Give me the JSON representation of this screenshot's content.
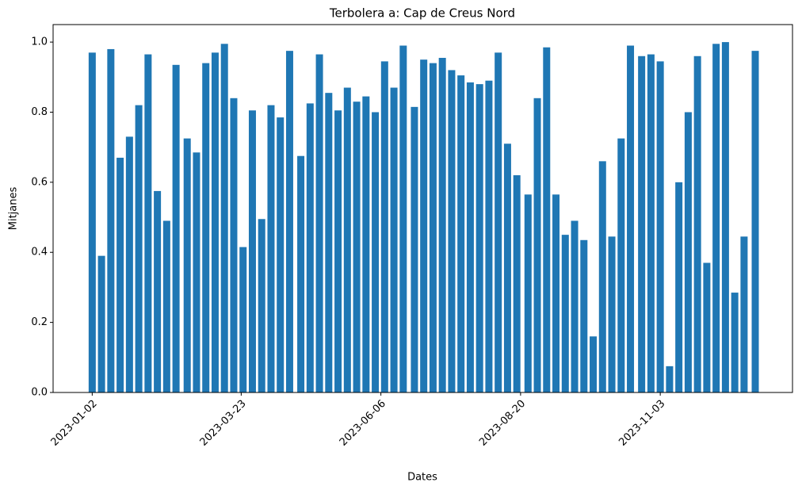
{
  "chart_data": {
    "type": "bar",
    "title": "Terbolera a: Cap de Creus Nord",
    "xlabel": "Dates",
    "ylabel": "Mitjanes",
    "color": "#1f77b4",
    "x": [
      "2023-01-02",
      "2023-01-07",
      "2023-01-12",
      "2023-01-17",
      "2023-01-22",
      "2023-01-27",
      "2023-02-01",
      "2023-02-06",
      "2023-02-11",
      "2023-02-16",
      "2023-02-22",
      "2023-02-27",
      "2023-03-04",
      "2023-03-09",
      "2023-03-14",
      "2023-03-19",
      "2023-03-24",
      "2023-03-29",
      "2023-04-03",
      "2023-04-08",
      "2023-04-13",
      "2023-04-18",
      "2023-04-24",
      "2023-04-29",
      "2023-05-04",
      "2023-05-09",
      "2023-05-14",
      "2023-05-19",
      "2023-05-24",
      "2023-05-29",
      "2023-06-03",
      "2023-06-08",
      "2023-06-13",
      "2023-06-18",
      "2023-06-24",
      "2023-06-29",
      "2023-07-04",
      "2023-07-09",
      "2023-07-14",
      "2023-07-19",
      "2023-07-24",
      "2023-07-29",
      "2023-08-03",
      "2023-08-08",
      "2023-08-13",
      "2023-08-18",
      "2023-08-24",
      "2023-08-29",
      "2023-09-03",
      "2023-09-08",
      "2023-09-13",
      "2023-09-18",
      "2023-09-23",
      "2023-09-28",
      "2023-10-03",
      "2023-10-08",
      "2023-10-13",
      "2023-10-18",
      "2023-10-24",
      "2023-10-29",
      "2023-11-03",
      "2023-11-08",
      "2023-11-13",
      "2023-11-18",
      "2023-11-23",
      "2023-11-28",
      "2023-12-03",
      "2023-12-08",
      "2023-12-13",
      "2023-12-18",
      "2023-12-24"
    ],
    "values": [
      0.97,
      0.39,
      0.98,
      0.67,
      0.73,
      0.82,
      0.965,
      0.575,
      0.49,
      0.935,
      0.725,
      0.685,
      0.94,
      0.97,
      0.995,
      0.84,
      0.415,
      0.805,
      0.495,
      0.82,
      0.785,
      0.975,
      0.675,
      0.825,
      0.965,
      0.855,
      0.805,
      0.87,
      0.83,
      0.845,
      0.8,
      0.945,
      0.87,
      0.99,
      0.815,
      0.95,
      0.94,
      0.955,
      0.92,
      0.905,
      0.885,
      0.88,
      0.89,
      0.97,
      0.71,
      0.62,
      0.565,
      0.84,
      0.985,
      0.565,
      0.45,
      0.49,
      0.435,
      0.16,
      0.66,
      0.445,
      0.725,
      0.99,
      0.96,
      0.965,
      0.945,
      0.075,
      0.6,
      0.8,
      0.96,
      0.37,
      0.995,
      1.0,
      0.285,
      0.445,
      0.975
    ],
    "xlim": [
      "2022-12-12",
      "2024-01-13"
    ],
    "xticks": [
      "2023-01-02",
      "2023-03-23",
      "2023-06-06",
      "2023-08-20",
      "2023-11-03"
    ],
    "ylim": [
      0,
      1.05
    ],
    "yticks": [
      {
        "value": 0,
        "label": "0.0"
      },
      {
        "value": 0.2,
        "label": "0.2"
      },
      {
        "value": 0.4,
        "label": "0.4"
      },
      {
        "value": 0.6,
        "label": "0.6"
      },
      {
        "value": 0.8,
        "label": "0.8"
      },
      {
        "value": 1,
        "label": "1.0"
      }
    ]
  }
}
